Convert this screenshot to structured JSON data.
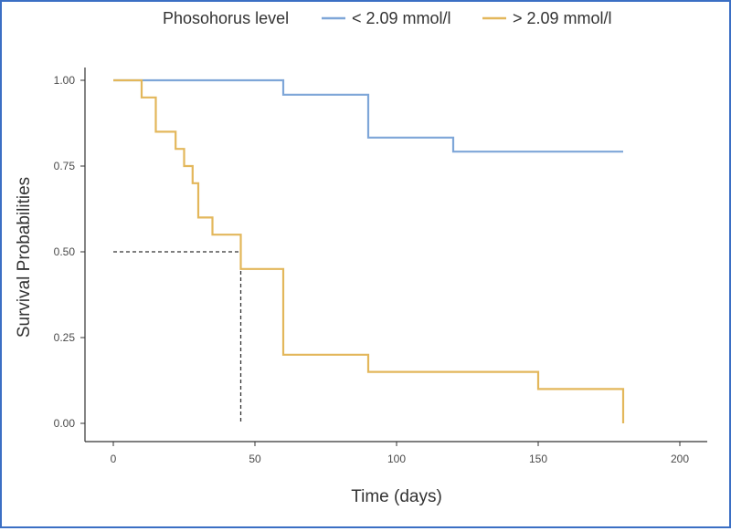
{
  "colors": {
    "series_low": "#7ea6d8",
    "series_high": "#e3b75b",
    "median_line": "#333333",
    "border": "#3b6fc4",
    "axis": "#333333"
  },
  "legend": {
    "title": "Phosohorus level",
    "items": [
      {
        "label": "< 2.09 mmol/l",
        "color": "#7ea6d8"
      },
      {
        "label": "> 2.09 mmol/l",
        "color": "#e3b75b"
      }
    ],
    "position": "top"
  },
  "chart_data": {
    "type": "line",
    "step": true,
    "title": "",
    "xlabel": "Time (days)",
    "ylabel": "Survival Probabilities",
    "xlim": [
      0,
      200
    ],
    "ylim": [
      0,
      1
    ],
    "x_ticks": [
      0,
      50,
      100,
      150,
      200
    ],
    "x_tick_labels": [
      "0",
      "50",
      "100",
      "150",
      "200"
    ],
    "y_ticks": [
      0,
      0.25,
      0.5,
      0.75,
      1
    ],
    "y_tick_labels": [
      "0.00",
      "0.25",
      "0.50",
      "0.75",
      "1.00"
    ],
    "grid": false,
    "series": [
      {
        "name": "< 2.09 mmol/l",
        "color": "#7ea6d8",
        "x": [
          0,
          60,
          90,
          120,
          180
        ],
        "y": [
          1.0,
          0.958,
          0.833,
          0.792,
          0.792
        ]
      },
      {
        "name": "> 2.09 mmol/l",
        "color": "#e3b75b",
        "x": [
          0,
          10,
          15,
          22,
          25,
          28,
          30,
          35,
          45,
          60,
          90,
          150,
          180
        ],
        "y": [
          1.0,
          0.95,
          0.85,
          0.8,
          0.75,
          0.7,
          0.6,
          0.55,
          0.45,
          0.2,
          0.15,
          0.1,
          0.0
        ]
      }
    ],
    "median_line": {
      "x": 45,
      "y": 0.5,
      "style": "dashed"
    }
  }
}
